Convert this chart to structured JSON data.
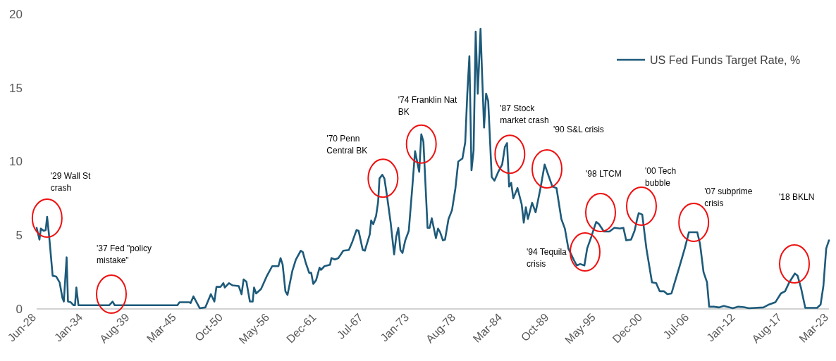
{
  "chart_data": {
    "type": "line",
    "xlim": [
      "1928-06",
      "2023-03"
    ],
    "xticks": [
      {
        "value": "1928-06",
        "label": "Jun-28"
      },
      {
        "value": "1934-01",
        "label": "Jan-34"
      },
      {
        "value": "1939-08",
        "label": "Aug-39"
      },
      {
        "value": "1945-03",
        "label": "Mar-45"
      },
      {
        "value": "1950-10",
        "label": "Oct-50"
      },
      {
        "value": "1956-05",
        "label": "May-56"
      },
      {
        "value": "1961-12",
        "label": "Dec-61"
      },
      {
        "value": "1967-07",
        "label": "Jul-67"
      },
      {
        "value": "1973-01",
        "label": "Jan-73"
      },
      {
        "value": "1978-08",
        "label": "Aug-78"
      },
      {
        "value": "1984-03",
        "label": "Mar-84"
      },
      {
        "value": "1989-10",
        "label": "Oct-89"
      },
      {
        "value": "1995-05",
        "label": "May-95"
      },
      {
        "value": "2000-12",
        "label": "Dec-00"
      },
      {
        "value": "2006-07",
        "label": "Jul-06"
      },
      {
        "value": "2012-01",
        "label": "Jan-12"
      },
      {
        "value": "2017-08",
        "label": "Aug-17"
      },
      {
        "value": "2023-03",
        "label": "Mar-23"
      }
    ],
    "ylim": [
      0,
      20
    ],
    "yticks": [
      0,
      5,
      10,
      15,
      20
    ],
    "legend": "top right",
    "series": [
      {
        "name": "US Fed Funds Target Rate, %",
        "color": "#1d5a7a",
        "x": [
          "1928-06",
          "1928-10",
          "1928-12",
          "1929-04",
          "1929-07",
          "1929-09",
          "1929-12",
          "1930-05",
          "1930-10",
          "1931-03",
          "1931-07",
          "1931-09",
          "1932-01",
          "1932-03",
          "1932-07",
          "1932-11",
          "1933-01",
          "1933-03",
          "1933-06",
          "1937-02",
          "1937-07",
          "1937-10",
          "1945-04",
          "1945-07",
          "1946-09",
          "1946-11",
          "1947-03",
          "1947-12",
          "1948-08",
          "1949-04",
          "1949-09",
          "1949-12",
          "1950-06",
          "1950-10",
          "1950-12",
          "1951-06",
          "1951-11",
          "1952-08",
          "1952-12",
          "1953-03",
          "1953-07",
          "1953-12",
          "1954-04",
          "1954-06",
          "1954-09",
          "1955-04",
          "1955-12",
          "1956-08",
          "1957-05",
          "1957-08",
          "1957-11",
          "1958-03",
          "1958-06",
          "1959-01",
          "1959-06",
          "1960-01",
          "1960-04",
          "1960-08",
          "1961-01",
          "1961-04",
          "1961-07",
          "1961-11",
          "1962-04",
          "1962-06",
          "1962-11",
          "1963-07",
          "1963-09",
          "1964-02",
          "1964-07",
          "1965-02",
          "1965-10",
          "1966-03",
          "1966-09",
          "1966-12",
          "1967-06",
          "1967-09",
          "1968-04",
          "1968-06",
          "1968-09",
          "1969-01",
          "1969-04",
          "1969-06",
          "1969-10",
          "1970-01",
          "1970-05",
          "1970-10",
          "1971-03",
          "1971-06",
          "1971-09",
          "1971-12",
          "1972-03",
          "1972-07",
          "1972-12",
          "1973-05",
          "1973-09",
          "1974-03",
          "1974-06",
          "1974-09",
          "1975-03",
          "1975-06",
          "1975-09",
          "1976-03",
          "1976-06",
          "1976-09",
          "1977-01",
          "1977-04",
          "1977-09",
          "1978-02",
          "1978-07",
          "1978-11",
          "1979-05",
          "1979-09",
          "1979-12",
          "1980-03",
          "1980-06",
          "1980-09",
          "1980-12",
          "1981-03",
          "1981-07",
          "1981-09",
          "1981-12",
          "1982-03",
          "1982-06",
          "1982-11",
          "1983-03",
          "1983-08",
          "1984-02",
          "1984-06",
          "1984-09",
          "1984-12",
          "1985-03",
          "1985-06",
          "1985-12",
          "1986-06",
          "1986-09",
          "1986-12",
          "1987-03",
          "1987-09",
          "1988-02",
          "1988-09",
          "1989-03",
          "1989-07",
          "1990-02",
          "1990-08",
          "1991-03",
          "1991-08",
          "1992-01",
          "1992-09",
          "1993-01",
          "1993-06",
          "1993-12",
          "1994-04",
          "1994-10",
          "1995-01",
          "1995-05",
          "1995-09",
          "1996-04",
          "1996-12",
          "1997-07",
          "1998-03",
          "1998-08",
          "1998-12",
          "1999-07",
          "1999-12",
          "2000-04",
          "2000-06",
          "2000-11",
          "2001-05",
          "2002-01",
          "2002-07",
          "2002-12",
          "2003-06",
          "2003-11",
          "2004-05",
          "2004-10",
          "2005-05",
          "2005-12",
          "2006-06",
          "2007-06",
          "2007-10",
          "2008-03",
          "2008-08",
          "2008-11",
          "2009-06",
          "2010-01",
          "2010-08",
          "2011-09",
          "2012-05",
          "2013-01",
          "2013-08",
          "2015-05",
          "2016-01",
          "2016-10",
          "2017-06",
          "2017-12",
          "2018-06",
          "2019-02",
          "2019-06",
          "2019-11",
          "2020-05",
          "2021-10",
          "2022-03",
          "2022-07",
          "2022-11",
          "2023-03"
        ],
        "values": [
          5.5,
          4.7,
          5.45,
          5.3,
          5.35,
          6.25,
          4.9,
          2.25,
          2.2,
          1.8,
          0.75,
          0.5,
          3.5,
          0.5,
          0.45,
          0.25,
          0.25,
          1.45,
          0.25,
          0.25,
          0.5,
          0.25,
          0.25,
          0.45,
          0.45,
          0.4,
          0.85,
          0.05,
          0.1,
          1.0,
          0.5,
          1.5,
          1.5,
          1.75,
          1.45,
          1.75,
          1.6,
          1.55,
          1.0,
          2.0,
          1.85,
          0.5,
          0.5,
          1.45,
          1.05,
          1.35,
          2.2,
          2.9,
          2.9,
          3.45,
          3.0,
          1.2,
          0.95,
          2.6,
          3.35,
          3.95,
          3.85,
          3.15,
          2.45,
          2.45,
          1.7,
          1.95,
          2.8,
          2.65,
          2.9,
          3.0,
          3.45,
          3.35,
          3.45,
          3.95,
          4.0,
          4.55,
          5.35,
          5.3,
          4.0,
          3.95,
          5.05,
          6.0,
          5.75,
          6.3,
          7.25,
          8.85,
          9.1,
          8.85,
          7.6,
          5.85,
          3.7,
          4.9,
          5.5,
          4.0,
          3.8,
          4.65,
          5.3,
          8.2,
          10.7,
          9.3,
          11.85,
          11.35,
          5.5,
          5.5,
          6.15,
          4.8,
          5.45,
          5.2,
          4.65,
          4.7,
          6.1,
          6.7,
          8.2,
          10.0,
          10.2,
          11.3,
          14.6,
          17.15,
          9.4,
          10.75,
          18.8,
          14.6,
          19.0,
          16.2,
          12.3,
          14.6,
          14.1,
          8.95,
          8.7,
          9.25,
          9.8,
          11.0,
          11.25,
          8.3,
          8.55,
          7.5,
          8.2,
          7.1,
          5.85,
          6.9,
          6.1,
          7.2,
          6.55,
          8.2,
          9.8,
          9.25,
          8.3,
          8.2,
          6.1,
          5.45,
          4.1,
          3.3,
          2.95,
          3.05,
          2.95,
          4.1,
          4.9,
          5.35,
          5.9,
          5.75,
          5.25,
          5.25,
          5.5,
          5.45,
          5.5,
          4.65,
          4.7,
          5.3,
          6.15,
          6.5,
          6.4,
          4.1,
          1.8,
          1.75,
          1.2,
          1.2,
          1.0,
          1.05,
          1.85,
          2.95,
          4.1,
          5.2,
          5.2,
          4.4,
          2.5,
          1.8,
          0.15,
          0.15,
          0.1,
          0.2,
          0.05,
          0.15,
          0.12,
          0.05,
          0.1,
          0.3,
          0.45,
          1.05,
          1.2,
          1.8,
          2.4,
          2.25,
          1.4,
          0.07,
          0.07,
          0.3,
          1.55,
          4.1,
          4.65
        ]
      }
    ],
    "annotations": [
      {
        "text": "'29 Wall St crash",
        "x": "1929-09",
        "y": 6.25
      },
      "'37 Fed \"policy mistake\"",
      {
        "text": "'70 Penn Central BK",
        "x": "1969-10",
        "y": 9.1
      },
      {
        "text": "'74 Franklin Nat BK",
        "x": "1974-06",
        "y": 11.85
      },
      {
        "text": "'87 Stock market crash",
        "x": "1984-09",
        "y": 11.25
      },
      "'90 S&L crisis",
      {
        "text": "'94 Tequila crisis",
        "x": "1994-04",
        "y": 4.1
      },
      "'98 LTCM",
      "'00 Tech bubble",
      {
        "text": "'07 subprime crisis",
        "x": "2007-06",
        "y": 5.2
      },
      "'18 BKLN"
    ]
  }
}
